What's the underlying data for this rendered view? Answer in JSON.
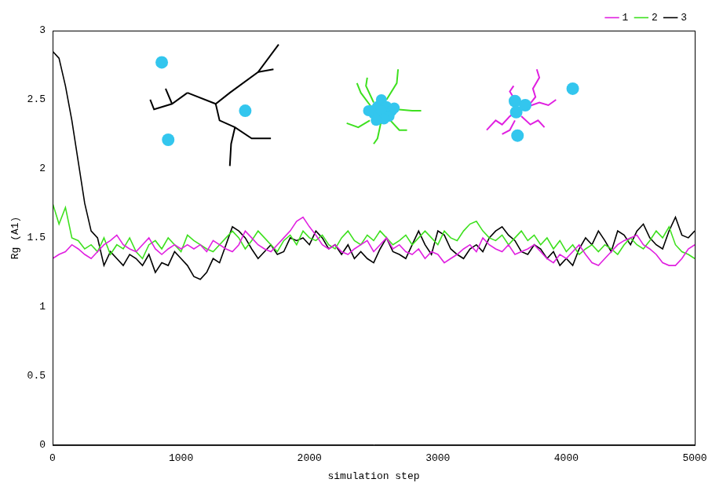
{
  "chart_data": {
    "type": "line",
    "x_label": "simulation step",
    "y_label": "Rg (A1)",
    "x": [
      0,
      50,
      100,
      150,
      200,
      250,
      300,
      350,
      400,
      450,
      500,
      550,
      600,
      650,
      700,
      750,
      800,
      850,
      900,
      950,
      1000,
      1050,
      1100,
      1150,
      1200,
      1250,
      1300,
      1350,
      1400,
      1450,
      1500,
      1550,
      1600,
      1650,
      1700,
      1750,
      1800,
      1850,
      1900,
      1950,
      2000,
      2050,
      2100,
      2150,
      2200,
      2250,
      2300,
      2350,
      2400,
      2450,
      2500,
      2550,
      2600,
      2650,
      2700,
      2750,
      2800,
      2850,
      2900,
      2950,
      3000,
      3050,
      3100,
      3150,
      3200,
      3250,
      3300,
      3350,
      3400,
      3450,
      3500,
      3550,
      3600,
      3650,
      3700,
      3750,
      3800,
      3850,
      3900,
      3950,
      4000,
      4050,
      4100,
      4150,
      4200,
      4250,
      4300,
      4350,
      4400,
      4450,
      4500,
      4550,
      4600,
      4650,
      4700,
      4750,
      4800,
      4850,
      4900,
      4950,
      5000
    ],
    "series": [
      {
        "name": "1",
        "color": "#e020e0",
        "values": [
          1.35,
          1.38,
          1.4,
          1.45,
          1.42,
          1.38,
          1.35,
          1.4,
          1.45,
          1.48,
          1.52,
          1.45,
          1.42,
          1.4,
          1.45,
          1.5,
          1.42,
          1.38,
          1.42,
          1.45,
          1.42,
          1.45,
          1.42,
          1.45,
          1.4,
          1.48,
          1.45,
          1.42,
          1.4,
          1.45,
          1.55,
          1.5,
          1.45,
          1.42,
          1.4,
          1.45,
          1.5,
          1.55,
          1.62,
          1.65,
          1.58,
          1.52,
          1.45,
          1.42,
          1.45,
          1.4,
          1.38,
          1.42,
          1.45,
          1.48,
          1.4,
          1.45,
          1.5,
          1.42,
          1.45,
          1.4,
          1.38,
          1.42,
          1.35,
          1.4,
          1.38,
          1.32,
          1.35,
          1.38,
          1.42,
          1.45,
          1.4,
          1.5,
          1.45,
          1.42,
          1.4,
          1.45,
          1.38,
          1.4,
          1.42,
          1.45,
          1.4,
          1.35,
          1.32,
          1.38,
          1.35,
          1.4,
          1.45,
          1.38,
          1.32,
          1.3,
          1.35,
          1.4,
          1.45,
          1.48,
          1.5,
          1.52,
          1.45,
          1.42,
          1.38,
          1.32,
          1.3,
          1.3,
          1.35,
          1.42,
          1.45
        ]
      },
      {
        "name": "2",
        "color": "#3ee01f",
        "values": [
          1.75,
          1.6,
          1.72,
          1.5,
          1.48,
          1.42,
          1.45,
          1.4,
          1.5,
          1.38,
          1.45,
          1.42,
          1.5,
          1.4,
          1.35,
          1.45,
          1.48,
          1.42,
          1.5,
          1.45,
          1.4,
          1.52,
          1.48,
          1.45,
          1.42,
          1.4,
          1.45,
          1.5,
          1.55,
          1.5,
          1.42,
          1.48,
          1.55,
          1.5,
          1.45,
          1.4,
          1.48,
          1.52,
          1.45,
          1.55,
          1.5,
          1.48,
          1.52,
          1.45,
          1.42,
          1.5,
          1.55,
          1.48,
          1.45,
          1.52,
          1.48,
          1.55,
          1.5,
          1.45,
          1.48,
          1.52,
          1.45,
          1.5,
          1.55,
          1.5,
          1.45,
          1.55,
          1.5,
          1.48,
          1.55,
          1.6,
          1.62,
          1.55,
          1.5,
          1.48,
          1.52,
          1.45,
          1.5,
          1.55,
          1.48,
          1.52,
          1.45,
          1.5,
          1.42,
          1.48,
          1.4,
          1.45,
          1.38,
          1.42,
          1.45,
          1.4,
          1.45,
          1.42,
          1.38,
          1.45,
          1.5,
          1.45,
          1.42,
          1.48,
          1.55,
          1.5,
          1.58,
          1.45,
          1.4,
          1.38,
          1.35
        ]
      },
      {
        "name": "3",
        "color": "#000000",
        "values": [
          2.85,
          2.8,
          2.6,
          2.35,
          2.05,
          1.75,
          1.55,
          1.5,
          1.3,
          1.4,
          1.35,
          1.3,
          1.38,
          1.35,
          1.3,
          1.38,
          1.25,
          1.32,
          1.3,
          1.4,
          1.35,
          1.3,
          1.22,
          1.2,
          1.25,
          1.35,
          1.32,
          1.45,
          1.58,
          1.55,
          1.5,
          1.42,
          1.35,
          1.4,
          1.45,
          1.38,
          1.4,
          1.5,
          1.48,
          1.5,
          1.45,
          1.55,
          1.5,
          1.42,
          1.45,
          1.38,
          1.45,
          1.35,
          1.4,
          1.35,
          1.32,
          1.42,
          1.5,
          1.4,
          1.38,
          1.35,
          1.45,
          1.55,
          1.45,
          1.38,
          1.55,
          1.52,
          1.42,
          1.38,
          1.35,
          1.42,
          1.45,
          1.4,
          1.5,
          1.55,
          1.58,
          1.52,
          1.48,
          1.4,
          1.38,
          1.45,
          1.42,
          1.35,
          1.4,
          1.3,
          1.35,
          1.3,
          1.42,
          1.5,
          1.45,
          1.55,
          1.48,
          1.4,
          1.55,
          1.52,
          1.45,
          1.55,
          1.6,
          1.5,
          1.45,
          1.42,
          1.55,
          1.65,
          1.52,
          1.5,
          1.55
        ]
      }
    ],
    "xlim": [
      0,
      5000
    ],
    "xticks": [
      0,
      1000,
      2000,
      3000,
      4000,
      5000
    ],
    "ylim": [
      0,
      3
    ],
    "yticks": [
      0,
      0.5,
      1,
      1.5,
      2,
      2.5,
      3
    ],
    "grid": false,
    "legend": "top right"
  }
}
